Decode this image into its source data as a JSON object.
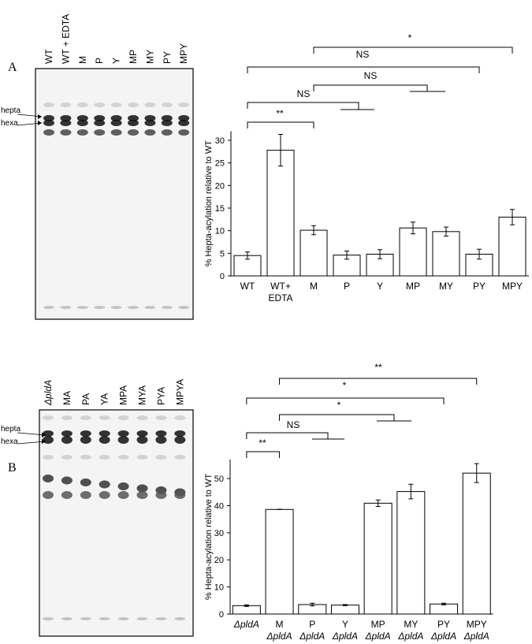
{
  "gels": [
    {
      "panel_label": "A",
      "lanes": [
        "WT",
        "WT + EDTA",
        "M",
        "P",
        "Y",
        "MP",
        "MY",
        "PY",
        "MPY"
      ],
      "band_labels": [
        "hepta",
        "hexa"
      ]
    },
    {
      "panel_label": "B",
      "lanes": [
        "ΔpldA",
        "MA",
        "PA",
        "YA",
        "MPA",
        "MYA",
        "PYA",
        "MPYA"
      ],
      "band_labels": [
        "hepta",
        "hexa"
      ]
    }
  ],
  "chart_data": [
    {
      "type": "bar",
      "ylabel": "% Hepta-acylation relative to WT",
      "categories": [
        [
          "WT"
        ],
        [
          "WT+",
          "EDTA"
        ],
        [
          "M"
        ],
        [
          "P"
        ],
        [
          "Y"
        ],
        [
          "MP"
        ],
        [
          "MY"
        ],
        [
          "PY"
        ],
        [
          "MPY"
        ]
      ],
      "series": [
        {
          "color": "#ffffff",
          "values": [
            4.5,
            27.8,
            10.1,
            4.6,
            4.8,
            10.6,
            9.8,
            4.8,
            13.0
          ],
          "errors": [
            0.8,
            3.5,
            1.0,
            0.9,
            1.0,
            1.3,
            1.0,
            1.1,
            1.7
          ]
        }
      ],
      "ylim": [
        0,
        32
      ],
      "yticks": [
        0,
        5,
        10,
        15,
        20,
        25,
        30
      ],
      "annotations": [
        "*",
        "NS",
        "NS",
        "NS",
        "**"
      ]
    },
    {
      "type": "bar",
      "ylabel": "% Hepta-acylation relative to WT",
      "categories": [
        [
          "ΔpldA"
        ],
        [
          "M",
          "ΔpldA"
        ],
        [
          "P",
          "ΔpldA"
        ],
        [
          "Y",
          "ΔpldA"
        ],
        [
          "MP",
          "ΔpldA"
        ],
        [
          "MY",
          "ΔpldA"
        ],
        [
          "PY",
          "ΔpldA"
        ],
        [
          "MPY",
          "ΔpldA"
        ]
      ],
      "series": [
        {
          "color": "#ffffff",
          "values": [
            3.1,
            38.6,
            3.5,
            3.3,
            40.9,
            45.2,
            3.7,
            52.0
          ],
          "errors": [
            0.3,
            0.0,
            0.5,
            0.2,
            1.2,
            2.7,
            0.3,
            3.5
          ]
        }
      ],
      "ylim": [
        0,
        57
      ],
      "yticks": [
        0,
        10,
        20,
        30,
        40,
        50
      ],
      "annotations": [
        "**",
        "*",
        "*",
        "NS",
        "**"
      ]
    }
  ]
}
